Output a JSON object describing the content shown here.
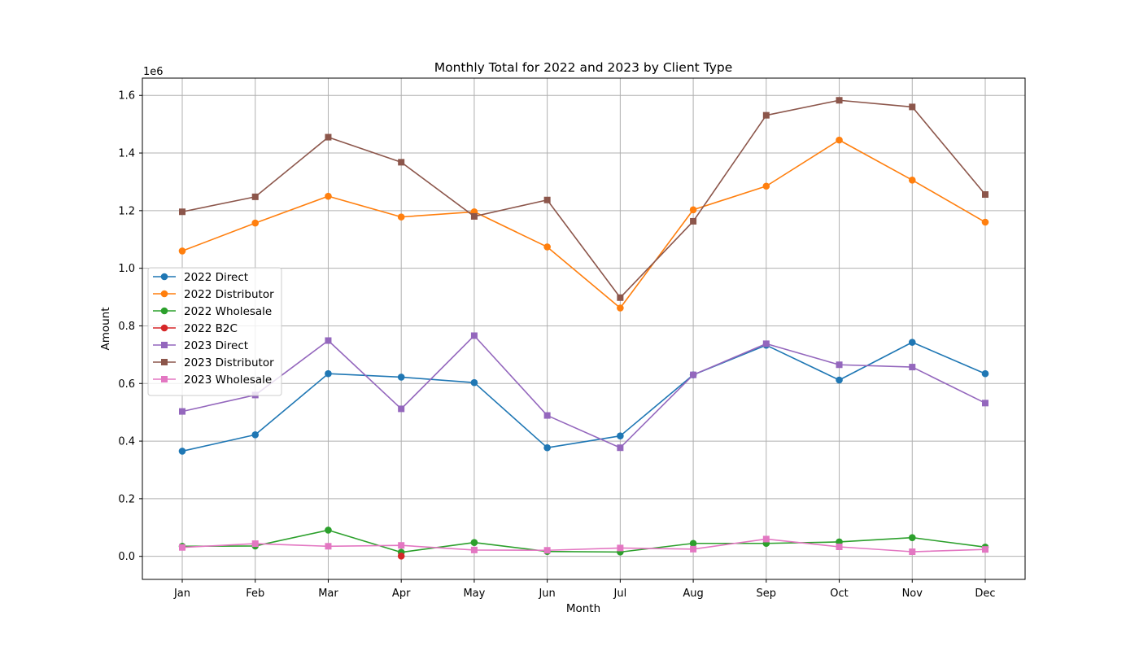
{
  "chart_data": {
    "type": "line",
    "title": "Monthly Total for 2022 and 2023 by Client Type",
    "xlabel": "Month",
    "ylabel": "Amount",
    "y_offset_text": "1e6",
    "y_scale_factor": 1000000,
    "categories": [
      "Jan",
      "Feb",
      "Mar",
      "Apr",
      "May",
      "Jun",
      "Jul",
      "Aug",
      "Sep",
      "Oct",
      "Nov",
      "Dec"
    ],
    "ylim": [
      -80000,
      1660000
    ],
    "yticks": [
      0,
      200000,
      400000,
      600000,
      800000,
      1000000,
      1200000,
      1400000,
      1600000
    ],
    "ytick_labels": [
      "0.0",
      "0.2",
      "0.4",
      "0.6",
      "0.8",
      "1.0",
      "1.2",
      "1.4",
      "1.6"
    ],
    "grid": true,
    "legend_position": "center-left",
    "series": [
      {
        "name": "2022 Direct",
        "color": "#1f77b4",
        "marker": "circle",
        "values": [
          365000,
          422000,
          634000,
          622000,
          603000,
          377000,
          418000,
          630000,
          733000,
          612000,
          743000,
          634000
        ]
      },
      {
        "name": "2022 Distributor",
        "color": "#ff7f0e",
        "marker": "circle",
        "values": [
          1060000,
          1157000,
          1250000,
          1178000,
          1196000,
          1074000,
          862000,
          1203000,
          1285000,
          1445000,
          1306000,
          1160000
        ]
      },
      {
        "name": "2022 Wholesale",
        "color": "#2ca02c",
        "marker": "circle",
        "values": [
          35000,
          36000,
          91000,
          14000,
          48000,
          17000,
          15000,
          45000,
          45000,
          50000,
          65000,
          32000
        ]
      },
      {
        "name": "2022 B2C",
        "color": "#d62728",
        "marker": "circle",
        "values": [
          null,
          null,
          null,
          1000,
          null,
          null,
          null,
          null,
          null,
          null,
          null,
          null
        ]
      },
      {
        "name": "2023 Direct",
        "color": "#9467bd",
        "marker": "square",
        "values": [
          503000,
          560000,
          749000,
          512000,
          766000,
          489000,
          377000,
          630000,
          738000,
          665000,
          657000,
          532000
        ]
      },
      {
        "name": "2023 Distributor",
        "color": "#8c564b",
        "marker": "square",
        "values": [
          1196000,
          1248000,
          1455000,
          1368000,
          1180000,
          1237000,
          898000,
          1163000,
          1531000,
          1583000,
          1560000,
          1256000
        ]
      },
      {
        "name": "2023 Wholesale",
        "color": "#e377c2",
        "marker": "square",
        "values": [
          31000,
          44000,
          35000,
          38000,
          22000,
          21000,
          29000,
          25000,
          60000,
          33000,
          16000,
          24000
        ]
      }
    ]
  }
}
